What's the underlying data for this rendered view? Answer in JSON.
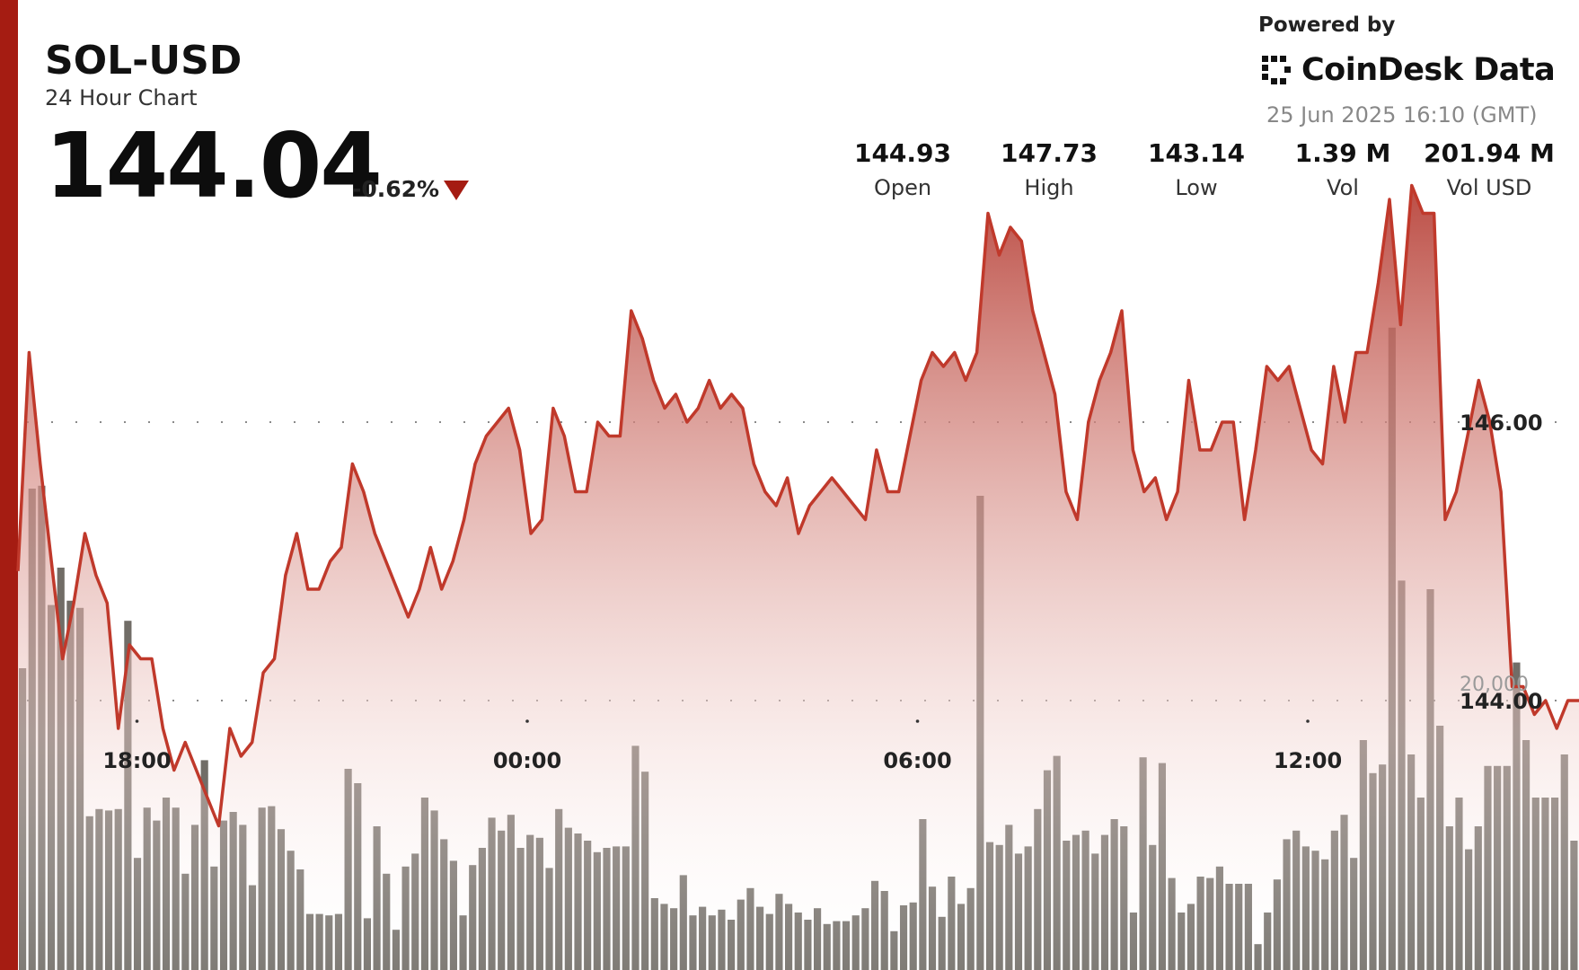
{
  "header": {
    "symbol": "SOL-USD",
    "subtitle": "24 Hour Chart",
    "price": "144.04",
    "change": "-0.62%",
    "change_direction": "down"
  },
  "branding": {
    "powered_by": "Powered by",
    "logo_text": "CoinDesk Data",
    "logo_icon": "coindesk-logo-icon",
    "timestamp": "25 Jun 2025 16:10 (GMT)"
  },
  "stats": [
    {
      "value": "144.93",
      "label": "Open"
    },
    {
      "value": "147.73",
      "label": "High"
    },
    {
      "value": "143.14",
      "label": "Low"
    },
    {
      "value": "1.39 M",
      "label": "Vol"
    },
    {
      "value": "201.94 M",
      "label": "Vol USD"
    }
  ],
  "colors": {
    "accent": "#a51c12",
    "line": "#c0392b",
    "volume": "#716d67",
    "text": "#111111"
  },
  "chart_data": {
    "type": "area",
    "x_tick_labels": [
      "18:00",
      "00:00",
      "06:00",
      "12:00"
    ],
    "x_tick_hours": [
      18,
      24,
      30,
      36
    ],
    "x_start_hour": 16.17,
    "x_end_hour": 40.17,
    "price_ylim": [
      142.0,
      148.0
    ],
    "price_ticks": [
      {
        "value": 146.0,
        "label": "146.00"
      },
      {
        "value": 144.0,
        "label": "144.00"
      }
    ],
    "price_series": [
      144.93,
      146.5,
      145.7,
      145.0,
      144.3,
      144.7,
      145.2,
      144.9,
      144.7,
      143.8,
      144.4,
      144.3,
      144.3,
      143.8,
      143.5,
      143.7,
      143.5,
      143.3,
      143.1,
      143.8,
      143.6,
      143.7,
      144.2,
      144.3,
      144.9,
      145.2,
      144.8,
      144.8,
      145.0,
      145.1,
      145.7,
      145.5,
      145.2,
      145.0,
      144.8,
      144.6,
      144.8,
      145.1,
      144.8,
      145.0,
      145.3,
      145.7,
      145.9,
      146.0,
      146.1,
      145.8,
      145.2,
      145.3,
      146.1,
      145.9,
      145.5,
      145.5,
      146.0,
      145.9,
      145.9,
      146.8,
      146.6,
      146.3,
      146.1,
      146.2,
      146.0,
      146.1,
      146.3,
      146.1,
      146.2,
      146.1,
      145.7,
      145.5,
      145.4,
      145.6,
      145.2,
      145.4,
      145.5,
      145.6,
      145.5,
      145.4,
      145.3,
      145.8,
      145.5,
      145.5,
      145.9,
      146.3,
      146.5,
      146.4,
      146.5,
      146.3,
      146.5,
      147.5,
      147.2,
      147.4,
      147.3,
      146.8,
      146.5,
      146.2,
      145.5,
      145.3,
      146.0,
      146.3,
      146.5,
      146.8,
      145.8,
      145.5,
      145.6,
      145.3,
      145.5,
      146.3,
      145.8,
      145.8,
      146.0,
      146.0,
      145.3,
      145.8,
      146.4,
      146.3,
      146.4,
      146.1,
      145.8,
      145.7,
      146.4,
      146.0,
      146.5,
      146.5,
      147.0,
      147.6,
      146.7,
      147.7,
      147.5,
      147.5,
      145.3,
      145.5,
      145.9,
      146.3,
      146.0,
      145.5,
      144.1,
      144.1,
      143.9,
      144.0,
      143.8,
      144.0,
      144.0
    ],
    "volume_ylim": [
      0,
      45000
    ],
    "volume_ticks": [
      {
        "value": 20000,
        "label": "20,000"
      }
    ],
    "volume_series": [
      21000,
      33500,
      33700,
      25400,
      28000,
      25700,
      25200,
      10700,
      11200,
      11100,
      11200,
      24300,
      7800,
      11300,
      10400,
      12000,
      11300,
      6700,
      10100,
      14600,
      7200,
      10400,
      11000,
      10100,
      5900,
      11300,
      11400,
      9800,
      8300,
      7000,
      3900,
      3900,
      3800,
      3900,
      14000,
      13000,
      3600,
      10000,
      6700,
      2800,
      7200,
      8100,
      12000,
      11100,
      9100,
      7600,
      3800,
      7300,
      8500,
      10600,
      9700,
      10800,
      8500,
      9400,
      9200,
      7100,
      11200,
      9900,
      9500,
      9000,
      8200,
      8500,
      8600,
      8600,
      15600,
      13800,
      5000,
      4600,
      4300,
      6600,
      3800,
      4400,
      3800,
      4200,
      3500,
      4900,
      5700,
      4400,
      3900,
      5300,
      4600,
      4000,
      3500,
      4300,
      3200,
      3400,
      3400,
      3800,
      4300,
      6200,
      5500,
      2700,
      4500,
      4700,
      10500,
      5800,
      3700,
      6500,
      4600,
      5700,
      33000,
      8900,
      8700,
      10100,
      8100,
      8600,
      11200,
      13900,
      14900,
      9000,
      9400,
      9700,
      8100,
      9400,
      10500,
      10000,
      4000,
      14800,
      8700,
      14400,
      6400,
      4000,
      4600,
      6500,
      6400,
      7200,
      6000,
      6000,
      6000,
      1800,
      4000,
      6300,
      9100,
      9700,
      8600,
      8300,
      7700,
      9700,
      10800,
      7800,
      16000,
      13700,
      14300,
      44700,
      27100,
      15000,
      12000,
      26500,
      17000,
      10000,
      12000,
      8400,
      10000,
      14200,
      14200,
      14200,
      21400,
      16000,
      12000,
      12000,
      12000,
      15000,
      9000
    ]
  }
}
